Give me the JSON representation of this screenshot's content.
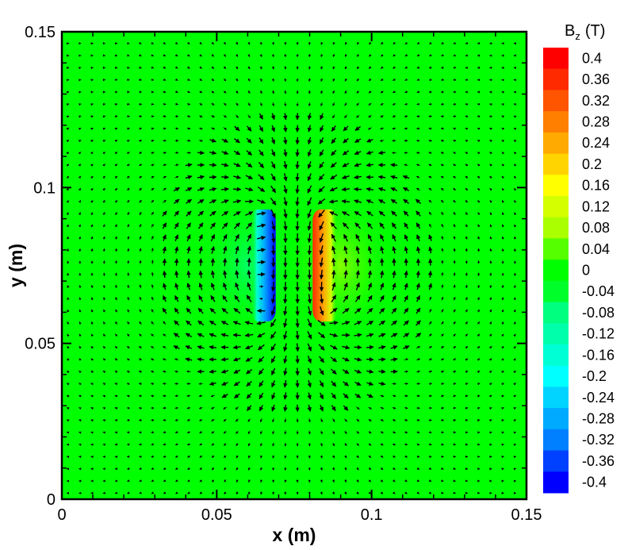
{
  "chart_data": {
    "type": "heatmap",
    "title": "",
    "xlabel": "x (m)",
    "ylabel": "y (m)",
    "xlim": [
      0,
      0.15
    ],
    "ylim": [
      0,
      0.15
    ],
    "x_ticks": [
      "0",
      "0.05",
      "0.1",
      "0.15"
    ],
    "y_ticks": [
      "0",
      "0.05",
      "0.1",
      "0.15"
    ],
    "grid": false,
    "overlay": "vector field arrows (in-plane field direction)",
    "colorbar": {
      "title_main": "B",
      "title_sub": "z",
      "title_unit": "(T)",
      "range": [
        -0.4,
        0.4
      ],
      "placement": "right",
      "labels": [
        "0.4",
        "0.36",
        "0.32",
        "0.28",
        "0.24",
        "0.2",
        "0.16",
        "0.12",
        "0.08",
        "0.04",
        "0",
        "-0.04",
        "-0.08",
        "-0.12",
        "-0.16",
        "-0.2",
        "-0.24",
        "-0.28",
        "-0.32",
        "-0.36",
        "-0.4"
      ],
      "colors": [
        "#ff0000",
        "#ff2a00",
        "#ff5500",
        "#ff7f00",
        "#ffaa00",
        "#ffd400",
        "#ffff00",
        "#d4ff00",
        "#aaff00",
        "#55ff00",
        "#00ff00",
        "#00ff2a",
        "#00ff7f",
        "#00ffaa",
        "#00ffd4",
        "#00ffff",
        "#00d4ff",
        "#00aaff",
        "#0080ff",
        "#0040ff",
        "#0000ff"
      ]
    },
    "features": [
      {
        "name": "negative-lobe",
        "x_range": [
          0.0625,
          0.0675
        ],
        "y_range": [
          0.057,
          0.093
        ],
        "bz_peak": -0.4
      },
      {
        "name": "positive-lobe",
        "x_range": [
          0.0825,
          0.0875
        ],
        "y_range": [
          0.057,
          0.093
        ],
        "bz_peak": 0.4
      },
      {
        "name": "source-center",
        "x": 0.075,
        "y": 0.075
      }
    ]
  }
}
